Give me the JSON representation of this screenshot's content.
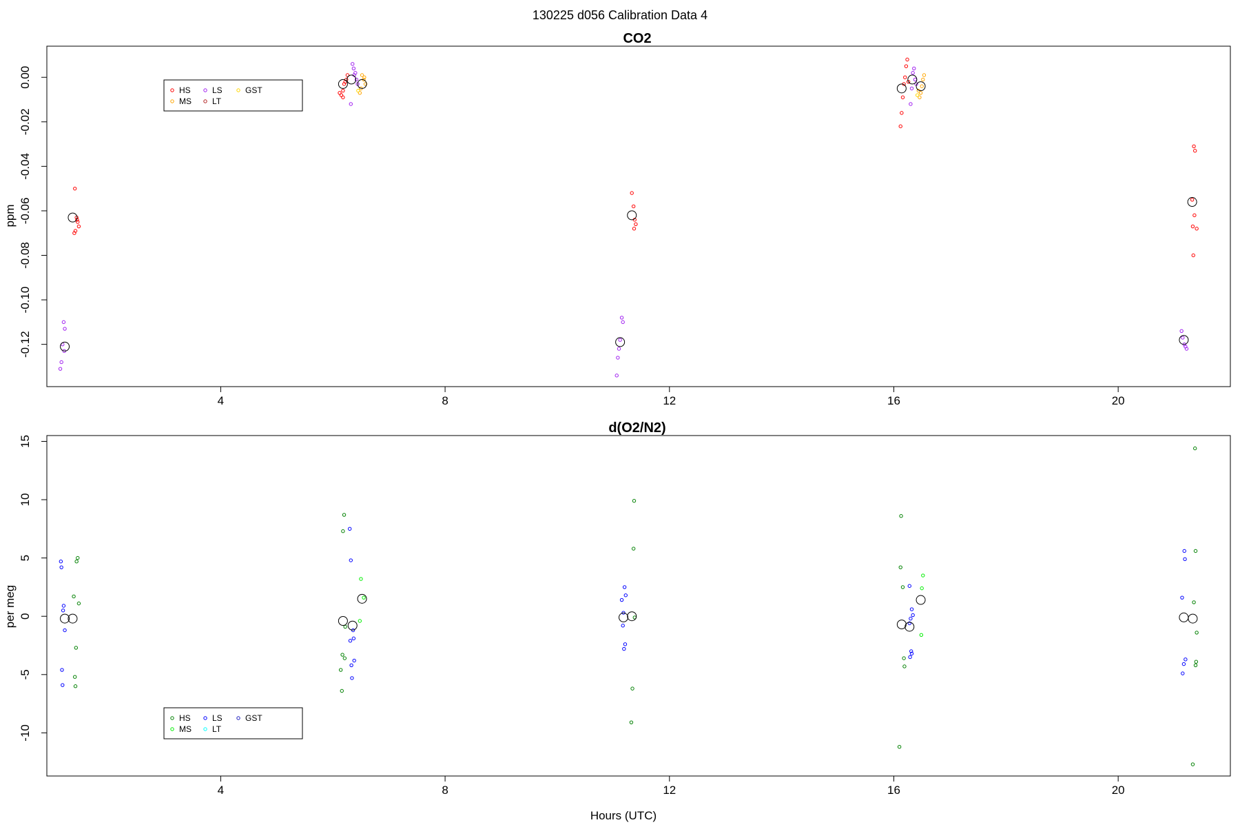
{
  "figure": {
    "supertitle": "130225   d056   Calibration Data 4",
    "xlabel": "Hours (UTC)"
  },
  "chart_data": [
    {
      "type": "scatter",
      "title": "CO2",
      "ylabel": "ppm",
      "xlabel": "",
      "xlim": [
        0.9,
        22.0
      ],
      "ylim": [
        -0.139,
        0.014
      ],
      "xticks": [
        4,
        8,
        12,
        16,
        20
      ],
      "yticks": [
        0.0,
        -0.02,
        -0.04,
        -0.06,
        -0.08,
        -0.1,
        -0.12
      ],
      "ytick_labels": [
        "0.00",
        "-0.02",
        "-0.04",
        "-0.06",
        "-0.08",
        "-0.10",
        "-0.12"
      ],
      "legend": {
        "placement": "top-left",
        "entries": [
          {
            "label": "HS",
            "color": "#ff0000"
          },
          {
            "label": "LS",
            "color": "#a020f0"
          },
          {
            "label": "GST",
            "color": "#ffd700"
          },
          {
            "label": "MS",
            "color": "#ffa500"
          },
          {
            "label": "LT",
            "color": "#b22222"
          }
        ]
      },
      "series": [
        {
          "name": "HS",
          "color": "#ff0000",
          "points": [
            [
              1.4,
              -0.05
            ],
            [
              1.43,
              -0.063
            ],
            [
              1.45,
              -0.065
            ],
            [
              1.47,
              -0.067
            ],
            [
              1.41,
              -0.069
            ],
            [
              1.39,
              -0.07
            ],
            [
              1.44,
              -0.064
            ],
            [
              6.12,
              -0.007
            ],
            [
              6.15,
              -0.008
            ],
            [
              6.18,
              -0.006
            ],
            [
              6.2,
              -0.003
            ],
            [
              6.22,
              -0.002
            ],
            [
              6.24,
              -0.001
            ],
            [
              6.26,
              0.001
            ],
            [
              6.18,
              -0.009
            ],
            [
              11.33,
              -0.052
            ],
            [
              11.36,
              -0.058
            ],
            [
              11.38,
              -0.064
            ],
            [
              11.4,
              -0.066
            ],
            [
              11.37,
              -0.068
            ],
            [
              16.12,
              -0.022
            ],
            [
              16.14,
              -0.016
            ],
            [
              16.16,
              -0.009
            ],
            [
              16.18,
              -0.003
            ],
            [
              16.2,
              0.0
            ],
            [
              16.22,
              0.005
            ],
            [
              16.24,
              0.008
            ],
            [
              16.26,
              -0.002
            ],
            [
              21.35,
              -0.031
            ],
            [
              21.37,
              -0.033
            ],
            [
              21.32,
              -0.055
            ],
            [
              21.36,
              -0.062
            ],
            [
              21.33,
              -0.067
            ],
            [
              21.4,
              -0.068
            ],
            [
              21.34,
              -0.08
            ]
          ]
        },
        {
          "name": "LS",
          "color": "#a020f0",
          "points": [
            [
              1.2,
              -0.11
            ],
            [
              1.22,
              -0.113
            ],
            [
              1.18,
              -0.12
            ],
            [
              1.21,
              -0.123
            ],
            [
              1.16,
              -0.128
            ],
            [
              1.14,
              -0.131
            ],
            [
              6.32,
              -0.012
            ],
            [
              6.35,
              0.006
            ],
            [
              6.37,
              0.004
            ],
            [
              6.4,
              0.002
            ],
            [
              6.42,
              -0.001
            ],
            [
              6.44,
              -0.003
            ],
            [
              6.38,
              0.001
            ],
            [
              11.15,
              -0.108
            ],
            [
              11.17,
              -0.11
            ],
            [
              11.12,
              -0.118
            ],
            [
              11.1,
              -0.122
            ],
            [
              11.08,
              -0.126
            ],
            [
              11.06,
              -0.134
            ],
            [
              16.3,
              -0.012
            ],
            [
              16.32,
              -0.005
            ],
            [
              16.34,
              0.002
            ],
            [
              16.36,
              0.004
            ],
            [
              16.38,
              -0.001
            ],
            [
              16.4,
              -0.003
            ],
            [
              21.13,
              -0.114
            ],
            [
              21.15,
              -0.117
            ],
            [
              21.18,
              -0.12
            ],
            [
              21.2,
              -0.121
            ],
            [
              21.22,
              -0.122
            ]
          ]
        },
        {
          "name": "MS",
          "color": "#ffa500",
          "points": [
            [
              6.52,
              0.001
            ],
            [
              6.55,
              -0.001
            ],
            [
              6.58,
              -0.003
            ],
            [
              6.5,
              -0.005
            ],
            [
              6.48,
              -0.007
            ],
            [
              6.56,
              0.0
            ],
            [
              16.46,
              -0.009
            ],
            [
              16.48,
              -0.007
            ],
            [
              16.5,
              -0.004
            ],
            [
              16.52,
              -0.001
            ],
            [
              16.54,
              0.001
            ],
            [
              16.44,
              -0.006
            ]
          ]
        },
        {
          "name": "GST",
          "color": "#ffd700",
          "points": [
            [
              6.45,
              -0.006
            ],
            [
              16.42,
              -0.008
            ]
          ]
        }
      ],
      "means": [
        [
          1.22,
          -0.121
        ],
        [
          1.36,
          -0.063
        ],
        [
          6.18,
          -0.003
        ],
        [
          6.33,
          -0.001
        ],
        [
          6.52,
          -0.003
        ],
        [
          11.12,
          -0.119
        ],
        [
          11.33,
          -0.062
        ],
        [
          16.14,
          -0.005
        ],
        [
          16.33,
          -0.001
        ],
        [
          16.48,
          -0.004
        ],
        [
          21.17,
          -0.118
        ],
        [
          21.32,
          -0.056
        ]
      ]
    },
    {
      "type": "scatter",
      "title": "d(O2/N2)",
      "ylabel": "per meg",
      "xlabel": "Hours (UTC)",
      "xlim": [
        0.9,
        22.0
      ],
      "ylim": [
        -13.7,
        15.5
      ],
      "xticks": [
        4,
        8,
        12,
        16,
        20
      ],
      "yticks": [
        15,
        10,
        5,
        0,
        -5,
        -10
      ],
      "ytick_labels": [
        "15",
        "10",
        "5",
        "0",
        "-5",
        "-10"
      ],
      "legend": {
        "placement": "bottom-left",
        "entries": [
          {
            "label": "HS",
            "color": "#008000"
          },
          {
            "label": "LS",
            "color": "#0000ff"
          },
          {
            "label": "GST",
            "color": "#2020c0"
          },
          {
            "label": "MS",
            "color": "#00ee00"
          },
          {
            "label": "LT",
            "color": "#00ffff"
          }
        ]
      },
      "series": [
        {
          "name": "HS",
          "color": "#008000",
          "points": [
            [
              1.45,
              5.0
            ],
            [
              1.43,
              4.7
            ],
            [
              1.38,
              1.7
            ],
            [
              1.47,
              1.1
            ],
            [
              1.42,
              -2.7
            ],
            [
              1.4,
              -5.2
            ],
            [
              1.41,
              -6.0
            ],
            [
              6.2,
              8.7
            ],
            [
              6.18,
              7.3
            ],
            [
              6.22,
              -0.9
            ],
            [
              6.17,
              -3.3
            ],
            [
              6.21,
              -3.6
            ],
            [
              6.14,
              -4.6
            ],
            [
              6.16,
              -6.4
            ],
            [
              11.37,
              9.9
            ],
            [
              11.36,
              5.8
            ],
            [
              11.38,
              -0.1
            ],
            [
              11.34,
              -6.2
            ],
            [
              11.32,
              -9.1
            ],
            [
              16.13,
              8.6
            ],
            [
              16.12,
              4.2
            ],
            [
              16.16,
              2.5
            ],
            [
              16.18,
              -3.6
            ],
            [
              16.19,
              -4.3
            ],
            [
              16.1,
              -11.2
            ],
            [
              21.37,
              14.4
            ],
            [
              21.38,
              5.6
            ],
            [
              21.35,
              1.2
            ],
            [
              21.4,
              -1.4
            ],
            [
              21.39,
              -3.9
            ],
            [
              21.38,
              -4.2
            ],
            [
              21.33,
              -12.7
            ]
          ]
        },
        {
          "name": "LS",
          "color": "#0000ff",
          "points": [
            [
              1.15,
              4.7
            ],
            [
              1.16,
              4.2
            ],
            [
              1.2,
              0.9
            ],
            [
              1.19,
              0.5
            ],
            [
              1.22,
              -1.2
            ],
            [
              1.17,
              -4.6
            ],
            [
              1.18,
              -5.9
            ],
            [
              6.3,
              7.5
            ],
            [
              6.32,
              4.8
            ],
            [
              6.36,
              -1.2
            ],
            [
              6.37,
              -1.9
            ],
            [
              6.31,
              -2.1
            ],
            [
              6.38,
              -3.8
            ],
            [
              6.33,
              -4.2
            ],
            [
              6.34,
              -5.3
            ],
            [
              11.2,
              2.5
            ],
            [
              11.22,
              1.8
            ],
            [
              11.15,
              1.4
            ],
            [
              11.18,
              0.3
            ],
            [
              11.17,
              -0.8
            ],
            [
              11.21,
              -2.4
            ],
            [
              11.19,
              -2.8
            ],
            [
              16.28,
              2.6
            ],
            [
              16.32,
              0.6
            ],
            [
              16.34,
              0.1
            ],
            [
              16.3,
              -0.2
            ],
            [
              16.28,
              -0.6
            ],
            [
              16.31,
              -3.0
            ],
            [
              16.32,
              -3.2
            ],
            [
              16.29,
              -3.5
            ],
            [
              21.18,
              5.6
            ],
            [
              21.19,
              4.9
            ],
            [
              21.14,
              1.6
            ],
            [
              21.2,
              -3.7
            ],
            [
              21.17,
              -4.1
            ],
            [
              21.15,
              -4.9
            ]
          ]
        },
        {
          "name": "MS",
          "color": "#00ee00",
          "points": [
            [
              6.5,
              3.2
            ],
            [
              6.55,
              1.6
            ],
            [
              6.48,
              -0.4
            ],
            [
              16.52,
              3.5
            ],
            [
              16.5,
              2.4
            ],
            [
              16.49,
              -1.6
            ]
          ]
        }
      ],
      "means": [
        [
          1.22,
          -0.2
        ],
        [
          1.36,
          -0.2
        ],
        [
          6.18,
          -0.4
        ],
        [
          6.35,
          -0.8
        ],
        [
          6.52,
          1.5
        ],
        [
          11.18,
          -0.1
        ],
        [
          11.33,
          0.0
        ],
        [
          16.14,
          -0.7
        ],
        [
          16.28,
          -0.9
        ],
        [
          16.48,
          1.4
        ],
        [
          21.17,
          -0.1
        ],
        [
          21.33,
          -0.2
        ]
      ]
    }
  ]
}
